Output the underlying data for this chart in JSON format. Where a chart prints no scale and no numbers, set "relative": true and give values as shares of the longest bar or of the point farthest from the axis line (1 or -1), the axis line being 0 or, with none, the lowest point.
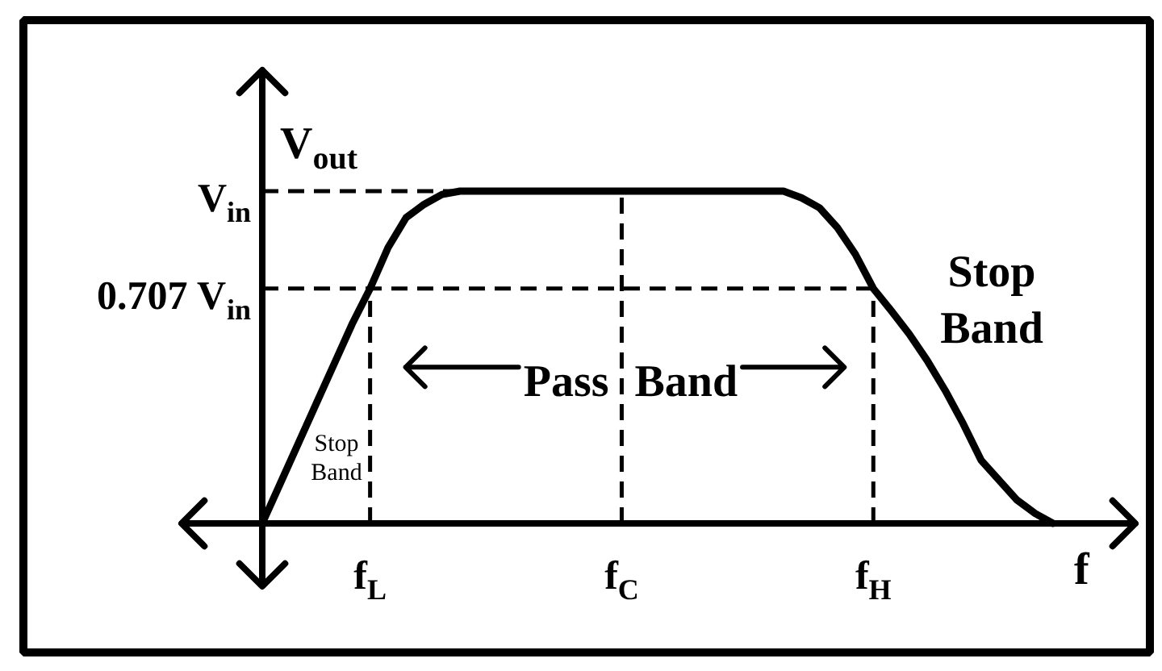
{
  "chart_data": {
    "type": "line",
    "relative": true,
    "xlabel": "f",
    "ylabel": "V$_{out}$",
    "line_style": "solid",
    "categories": [
      null,
      null,
      null,
      null,
      null,
      null,
      "f$_{L}$",
      null,
      null,
      null,
      null,
      null,
      null,
      null,
      null,
      null,
      null,
      null,
      null,
      null,
      "f$_{C}$",
      null,
      null,
      null,
      null,
      null,
      null,
      null,
      null,
      null,
      null,
      null,
      null,
      null,
      "f$_{H}$",
      null,
      null,
      null,
      null,
      null,
      null,
      null,
      null,
      null,
      null
    ],
    "series": [
      {
        "color": "#000000",
        "values": [
          0,
          0.12,
          0.24,
          0.36,
          0.48,
          0.6,
          0.707,
          0.83,
          0.92,
          0.96,
          0.99,
          1,
          1,
          1,
          1,
          1,
          1,
          1,
          1,
          1,
          1,
          1,
          1,
          1,
          1,
          1,
          1,
          1,
          1,
          1,
          0.98,
          0.95,
          0.89,
          0.81,
          0.707,
          0.64,
          0.57,
          0.49,
          0.4,
          0.3,
          0.19,
          0.13,
          0.07,
          0.03,
          0
        ]
      }
    ],
    "ref_lines": [
      {
        "axis": "y",
        "value": 1,
        "label": "V$_{in}$",
        "line_style": "dashed",
        "color": "#000000"
      },
      {
        "axis": "y",
        "value": 0.707,
        "label": "0.707 V$_{in}$",
        "line_style": "dashed",
        "color": "#000000"
      },
      {
        "axis": "x",
        "value": "f$_{L}$",
        "line_style": "dashed",
        "color": "#000000"
      },
      {
        "axis": "x",
        "value": "f$_{C}$",
        "line_style": "dashed",
        "color": "#000000"
      },
      {
        "axis": "x",
        "value": "f$_{H}$",
        "line_style": "dashed",
        "color": "#000000"
      }
    ],
    "annotations": [
      "Stop\nBand",
      {
        "text": "Pass Band",
        "x": "f$_{C}$",
        "y": 0.47
      },
      "Stop\nBand"
    ]
  }
}
